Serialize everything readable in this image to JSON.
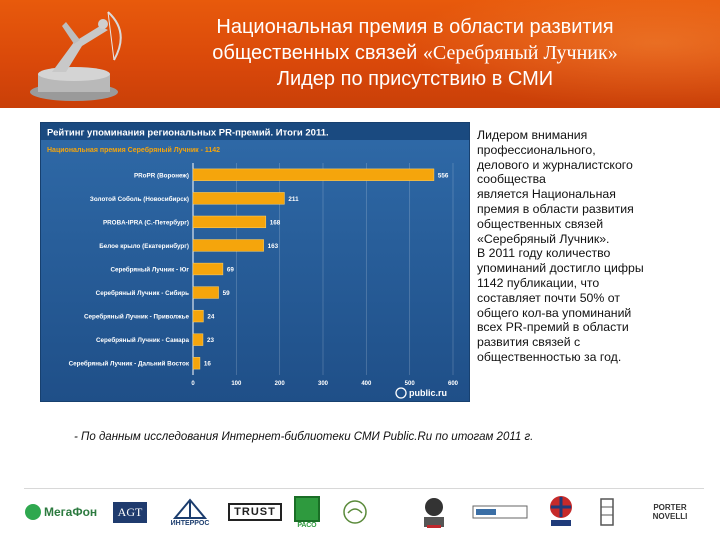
{
  "header": {
    "title_line1": "Национальная премия в области развития",
    "title_line2_a": "общественных связей ",
    "title_line2_b": "«Серебряный Лучник»",
    "title_line3": "Лидер по присутствию в СМИ",
    "accent_color": "#e0530b"
  },
  "chart_data": {
    "type": "bar",
    "orientation": "horizontal",
    "title": "Рейтинг упоминания региональных PR-премий. Итоги 2011.",
    "subtitle": "Национальная премия Серебряный Лучник - 1142",
    "categories": [
      "PRoPR (Воронеж)",
      "Золотой Соболь (Новосибирск)",
      "PROBA-IPRA (С.-Петербург)",
      "Белое крыло (Екатеринбург)",
      "Серебряный Лучник - Юг",
      "Серебряный Лучник - Сибирь",
      "Серебряный Лучник - Приволжье",
      "Серебряный Лучник - Самара",
      "Серебряный Лучник - Дальний Восток"
    ],
    "values": [
      556,
      211,
      168,
      163,
      69,
      59,
      24,
      23,
      16
    ],
    "xlim": [
      0,
      600
    ],
    "xticks": [
      "0",
      "100",
      "200",
      "300",
      "400",
      "500",
      "600"
    ],
    "watermark": "public.ru",
    "grid": true,
    "colors": {
      "bar": "#f5a50c",
      "background": "#2a609c",
      "label": "#ffffff",
      "title": "#ffffff",
      "subtitle": "#f5a50c"
    }
  },
  "side_text": {
    "lines": [
      "Лидером внимания",
      "профессионального,",
      "делового и журналистского",
      "сообщества",
      "является Национальная",
      "премия в области развития",
      "общественных связей",
      "«Серебряный Лучник».",
      "В 2011 году количество",
      "упоминаний достигло цифры",
      "1142 публикации, что",
      "составляет почти 50% от",
      "общего кол-ва упоминаний",
      "всех PR-премий в области",
      "развития связей с",
      "общественностью за год."
    ]
  },
  "footnote": "- По данным исследования Интернет-библиотеки СМИ Public.Ru  по итогам 2011 г.",
  "sponsors": {
    "megafon": "МегаФон",
    "agt": "AGT",
    "interros": "ИНТЕРРОС",
    "trust": "TRUST",
    "raso": "РАСО",
    "porter": "PORTER NOVELLI",
    "icon_names": [
      "megafon-logo",
      "agt-logo",
      "interros-logo",
      "trust-logo",
      "raso-logo",
      "bird-logo",
      "portrait-logo",
      "akos-logo",
      "shield-logo",
      "flag-logo",
      "building-logo",
      "porter-novelli-logo"
    ]
  }
}
